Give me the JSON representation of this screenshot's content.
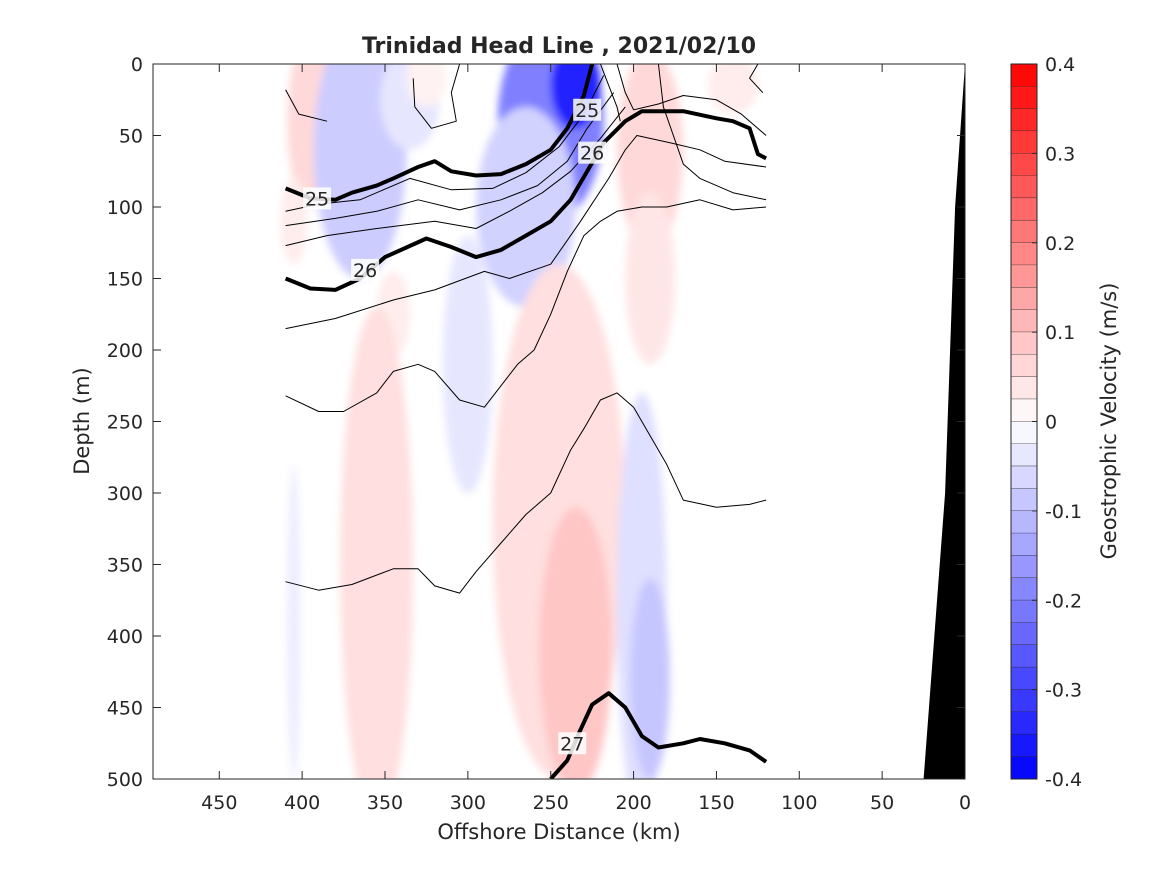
{
  "chart_data": {
    "type": "heatmap",
    "title": "Trinidad Head Line , 2021/02/10",
    "xlabel": "Offshore Distance (km)",
    "ylabel": "Depth (m)",
    "x_reversed": true,
    "y_reversed": true,
    "xlim": [
      0,
      490
    ],
    "ylim": [
      0,
      500
    ],
    "xticks": [
      "450",
      "400",
      "350",
      "300",
      "250",
      "200",
      "150",
      "100",
      "50",
      "0"
    ],
    "xtick_values": [
      450,
      400,
      350,
      300,
      250,
      200,
      150,
      100,
      50,
      0
    ],
    "yticks": [
      "0",
      "50",
      "100",
      "150",
      "200",
      "250",
      "300",
      "350",
      "400",
      "450",
      "500"
    ],
    "ytick_values": [
      0,
      50,
      100,
      150,
      200,
      250,
      300,
      350,
      400,
      450,
      500
    ],
    "colorbar": {
      "label": "Geostrophic Velocity (m/s)",
      "range": [
        -0.4,
        0.4
      ],
      "step": 0.025,
      "ticks": [
        "0.4",
        "0.3",
        "0.2",
        "0.1",
        "0",
        "-0.1",
        "-0.2",
        "-0.3",
        "-0.4"
      ],
      "tick_values": [
        0.4,
        0.3,
        0.2,
        0.1,
        0,
        -0.1,
        -0.2,
        -0.3,
        -0.4
      ],
      "positive_color": "#ff0000",
      "negative_color": "#0000ff"
    },
    "velocity_field": [
      {
        "center": [
          395,
          40
        ],
        "extent": [
          14,
          60
        ],
        "value": 0.06
      },
      {
        "center": [
          405,
          110
        ],
        "extent": [
          8,
          30
        ],
        "value": 0.03
      },
      {
        "center": [
          365,
          60
        ],
        "extent": [
          28,
          90
        ],
        "value": -0.08
      },
      {
        "center": [
          335,
          25
        ],
        "extent": [
          18,
          35
        ],
        "value": -0.04
      },
      {
        "center": [
          325,
          10
        ],
        "extent": [
          12,
          20
        ],
        "value": 0.02
      },
      {
        "center": [
          345,
          175
        ],
        "extent": [
          10,
          30
        ],
        "value": 0.03
      },
      {
        "center": [
          300,
          210
        ],
        "extent": [
          15,
          90
        ],
        "value": -0.04
      },
      {
        "center": [
          250,
          40
        ],
        "extent": [
          32,
          70
        ],
        "value": -0.2
      },
      {
        "center": [
          235,
          15
        ],
        "extent": [
          15,
          30
        ],
        "value": -0.35
      },
      {
        "center": [
          265,
          100
        ],
        "extent": [
          30,
          70
        ],
        "value": -0.07
      },
      {
        "center": [
          190,
          60
        ],
        "extent": [
          20,
          70
        ],
        "value": 0.06
      },
      {
        "center": [
          190,
          150
        ],
        "extent": [
          15,
          60
        ],
        "value": 0.04
      },
      {
        "center": [
          140,
          15
        ],
        "extent": [
          15,
          20
        ],
        "value": 0.03
      },
      {
        "center": [
          355,
          350
        ],
        "extent": [
          22,
          180
        ],
        "value": 0.05
      },
      {
        "center": [
          245,
          320
        ],
        "extent": [
          40,
          180
        ],
        "value": 0.05
      },
      {
        "center": [
          235,
          410
        ],
        "extent": [
          22,
          100
        ],
        "value": 0.09
      },
      {
        "center": [
          195,
          380
        ],
        "extent": [
          15,
          150
        ],
        "value": -0.05
      },
      {
        "center": [
          190,
          430
        ],
        "extent": [
          12,
          70
        ],
        "value": -0.09
      },
      {
        "center": [
          405,
          390
        ],
        "extent": [
          4,
          110
        ],
        "value": -0.03
      }
    ],
    "density_contours": [
      {
        "level": 24.75,
        "thick": false,
        "points": [
          [
            410,
            18
          ],
          [
            402,
            35
          ],
          [
            385,
            40
          ]
        ]
      },
      {
        "level": 24.75,
        "thick": false,
        "points": [
          [
            333,
            10
          ],
          [
            332,
            30
          ],
          [
            322,
            45
          ],
          [
            307,
            40
          ],
          [
            310,
            20
          ],
          [
            305,
            0
          ]
        ]
      },
      {
        "level": 24.75,
        "thick": false,
        "points": [
          [
            220,
            0
          ],
          [
            210,
            30
          ],
          [
            208,
            40
          ]
        ]
      },
      {
        "level": 24.75,
        "thick": false,
        "points": [
          [
            125,
            0
          ],
          [
            130,
            10
          ],
          [
            122,
            20
          ]
        ]
      },
      {
        "level": 25,
        "thick": true,
        "label": "25",
        "label_at": [
          391,
          94
        ],
        "points": [
          [
            410,
            87
          ],
          [
            395,
            94
          ],
          [
            380,
            95
          ],
          [
            370,
            90
          ],
          [
            355,
            85
          ],
          [
            345,
            80
          ],
          [
            330,
            72
          ],
          [
            320,
            68
          ],
          [
            310,
            75
          ],
          [
            295,
            78
          ],
          [
            280,
            77
          ],
          [
            265,
            70
          ],
          [
            250,
            60
          ],
          [
            240,
            45
          ],
          [
            230,
            22
          ],
          [
            225,
            0
          ]
        ]
      },
      {
        "level": 25,
        "thick": true,
        "label": "25",
        "label_at": [
          228,
          32
        ],
        "points": []
      },
      {
        "level": 25.25,
        "thick": false,
        "points": [
          [
            410,
            103
          ],
          [
            390,
            98
          ],
          [
            365,
            95
          ],
          [
            335,
            80
          ],
          [
            310,
            88
          ],
          [
            285,
            87
          ],
          [
            265,
            76
          ],
          [
            245,
            58
          ],
          [
            230,
            35
          ],
          [
            218,
            8
          ]
        ]
      },
      {
        "level": 25.5,
        "thick": false,
        "points": [
          [
            410,
            113
          ],
          [
            380,
            108
          ],
          [
            355,
            103
          ],
          [
            330,
            95
          ],
          [
            305,
            102
          ],
          [
            280,
            95
          ],
          [
            258,
            85
          ],
          [
            240,
            68
          ],
          [
            228,
            45
          ],
          [
            212,
            20
          ]
        ]
      },
      {
        "level": 25.75,
        "thick": false,
        "points": [
          [
            410,
            127
          ],
          [
            385,
            120
          ],
          [
            355,
            115
          ],
          [
            320,
            110
          ],
          [
            295,
            115
          ],
          [
            275,
            103
          ],
          [
            255,
            90
          ],
          [
            238,
            75
          ],
          [
            220,
            52
          ],
          [
            205,
            30
          ]
        ]
      },
      {
        "level": 26,
        "thick": true,
        "label": "26",
        "label_at": [
          362,
          144
        ],
        "points": [
          [
            410,
            150
          ],
          [
            395,
            157
          ],
          [
            380,
            158
          ],
          [
            365,
            150
          ],
          [
            350,
            135
          ],
          [
            325,
            122
          ],
          [
            310,
            128
          ],
          [
            295,
            135
          ],
          [
            280,
            130
          ],
          [
            265,
            120
          ],
          [
            250,
            110
          ],
          [
            238,
            95
          ],
          [
            228,
            75
          ],
          [
            218,
            55
          ],
          [
            205,
            40
          ],
          [
            195,
            33
          ],
          [
            170,
            33
          ],
          [
            150,
            38
          ],
          [
            140,
            40
          ],
          [
            130,
            45
          ],
          [
            125,
            63
          ],
          [
            120,
            66
          ]
        ]
      },
      {
        "level": 26,
        "thick": true,
        "label": "26",
        "label_at": [
          225,
          62
        ],
        "points": []
      },
      {
        "level": 26.25,
        "thick": false,
        "points": [
          [
            410,
            185
          ],
          [
            380,
            178
          ],
          [
            345,
            165
          ],
          [
            320,
            158
          ],
          [
            290,
            145
          ],
          [
            275,
            150
          ],
          [
            250,
            140
          ],
          [
            232,
            110
          ],
          [
            215,
            80
          ],
          [
            205,
            60
          ],
          [
            198,
            50
          ],
          [
            178,
            55
          ],
          [
            160,
            60
          ],
          [
            145,
            68
          ],
          [
            120,
            72
          ]
        ]
      },
      {
        "level": 26.25,
        "thick": false,
        "points": [
          [
            210,
            0
          ],
          [
            205,
            20
          ],
          [
            200,
            32
          ],
          [
            185,
            28
          ],
          [
            170,
            22
          ],
          [
            150,
            25
          ],
          [
            135,
            35
          ],
          [
            120,
            50
          ]
        ]
      },
      {
        "level": 26.5,
        "thick": false,
        "points": [
          [
            410,
            232
          ],
          [
            390,
            243
          ],
          [
            375,
            243
          ],
          [
            355,
            230
          ],
          [
            345,
            215
          ],
          [
            330,
            210
          ],
          [
            320,
            215
          ],
          [
            305,
            235
          ],
          [
            290,
            240
          ],
          [
            270,
            210
          ],
          [
            260,
            200
          ],
          [
            250,
            175
          ],
          [
            240,
            145
          ],
          [
            230,
            120
          ],
          [
            220,
            110
          ],
          [
            210,
            103
          ],
          [
            195,
            100
          ],
          [
            180,
            100
          ],
          [
            160,
            95
          ],
          [
            140,
            102
          ],
          [
            120,
            100
          ]
        ]
      },
      {
        "level": 26.5,
        "thick": false,
        "points": [
          [
            185,
            0
          ],
          [
            182,
            30
          ],
          [
            170,
            70
          ],
          [
            160,
            80
          ],
          [
            140,
            90
          ],
          [
            120,
            95
          ]
        ]
      },
      {
        "level": 26.75,
        "thick": false,
        "points": [
          [
            410,
            362
          ],
          [
            390,
            368
          ],
          [
            370,
            364
          ],
          [
            345,
            353
          ],
          [
            330,
            353
          ],
          [
            320,
            365
          ],
          [
            305,
            370
          ],
          [
            295,
            355
          ],
          [
            280,
            335
          ],
          [
            265,
            315
          ],
          [
            250,
            300
          ],
          [
            238,
            270
          ],
          [
            230,
            255
          ],
          [
            220,
            235
          ],
          [
            210,
            230
          ],
          [
            200,
            240
          ],
          [
            190,
            260
          ],
          [
            180,
            280
          ],
          [
            170,
            305
          ],
          [
            150,
            310
          ],
          [
            130,
            308
          ],
          [
            120,
            305
          ]
        ]
      },
      {
        "level": 27,
        "thick": true,
        "label": "27",
        "label_at": [
          237,
          475
        ],
        "points": [
          [
            250,
            500
          ],
          [
            240,
            487
          ],
          [
            233,
            468
          ],
          [
            225,
            448
          ],
          [
            215,
            440
          ],
          [
            205,
            450
          ],
          [
            195,
            470
          ],
          [
            185,
            478
          ],
          [
            170,
            475
          ],
          [
            160,
            472
          ],
          [
            145,
            475
          ],
          [
            130,
            480
          ],
          [
            120,
            488
          ]
        ]
      }
    ],
    "contour_color": "#000000",
    "bathymetry_fill": "#000000",
    "bathymetry": [
      [
        25,
        500
      ],
      [
        12,
        300
      ],
      [
        6,
        100
      ],
      [
        0,
        0
      ]
    ]
  }
}
